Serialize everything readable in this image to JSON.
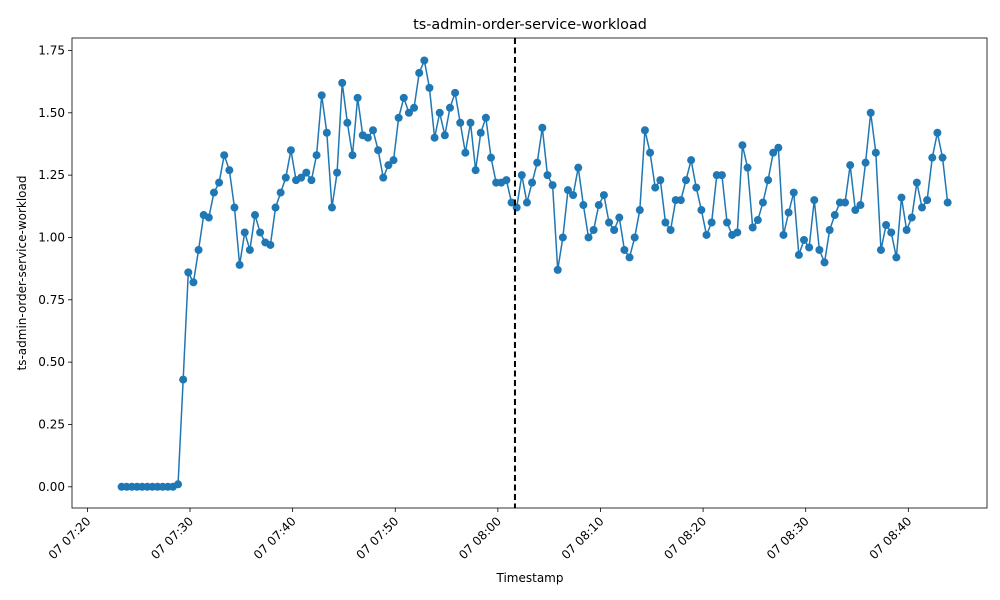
{
  "chart_data": {
    "type": "line",
    "title": "ts-admin-order-service-workload",
    "xlabel": "Timestamp",
    "ylabel": "ts-admin-order-service-workload",
    "x_start": "07 07:23:20",
    "x_step_seconds": 30,
    "xlim": [
      "07 07:18:30",
      "07 08:47:40"
    ],
    "ylim": [
      -0.085,
      1.8
    ],
    "x_ticks": [
      "07 07:20",
      "07 07:30",
      "07 07:40",
      "07 07:50",
      "07 08:00",
      "07 08:10",
      "07 08:20",
      "07 08:30",
      "07 08:40"
    ],
    "y_ticks": [
      "0.00",
      "0.25",
      "0.50",
      "0.75",
      "1.00",
      "1.25",
      "1.50",
      "1.75"
    ],
    "event_line_x": "07 08:01:40",
    "grid": false,
    "legend": "none",
    "series": [
      {
        "color": "#1f77b4",
        "values": [
          0,
          0,
          0,
          0,
          0,
          0,
          0,
          0,
          0,
          0,
          0,
          0.01,
          0.43,
          0.86,
          0.82,
          0.95,
          1.09,
          1.08,
          1.18,
          1.22,
          1.33,
          1.27,
          1.12,
          0.89,
          1.02,
          0.95,
          1.09,
          1.02,
          0.98,
          0.97,
          1.12,
          1.18,
          1.24,
          1.35,
          1.23,
          1.24,
          1.26,
          1.23,
          1.33,
          1.57,
          1.42,
          1.12,
          1.26,
          1.62,
          1.46,
          1.33,
          1.56,
          1.41,
          1.4,
          1.43,
          1.35,
          1.24,
          1.29,
          1.31,
          1.48,
          1.56,
          1.5,
          1.52,
          1.66,
          1.71,
          1.6,
          1.4,
          1.5,
          1.41,
          1.52,
          1.58,
          1.46,
          1.34,
          1.46,
          1.27,
          1.42,
          1.48,
          1.32,
          1.22,
          1.22,
          1.23,
          1.14,
          1.12,
          1.25,
          1.14,
          1.22,
          1.3,
          1.44,
          1.25,
          1.21,
          0.87,
          1.0,
          1.19,
          1.17,
          1.28,
          1.13,
          1.0,
          1.03,
          1.13,
          1.17,
          1.06,
          1.03,
          1.08,
          0.95,
          0.92,
          1.0,
          1.11,
          1.43,
          1.34,
          1.2,
          1.23,
          1.06,
          1.03,
          1.15,
          1.15,
          1.23,
          1.31,
          1.2,
          1.11,
          1.01,
          1.06,
          1.25,
          1.25,
          1.06,
          1.01,
          1.02,
          1.37,
          1.28,
          1.04,
          1.07,
          1.14,
          1.23,
          1.34,
          1.36,
          1.01,
          1.1,
          1.18,
          0.93,
          0.99,
          0.96,
          1.15,
          0.95,
          0.9,
          1.03,
          1.09,
          1.14,
          1.14,
          1.29,
          1.11,
          1.13,
          1.3,
          1.5,
          1.34,
          0.95,
          1.05,
          1.02,
          0.92,
          1.16,
          1.03,
          1.08,
          1.22,
          1.12,
          1.15,
          1.32,
          1.42,
          1.32,
          1.14
        ]
      }
    ]
  }
}
